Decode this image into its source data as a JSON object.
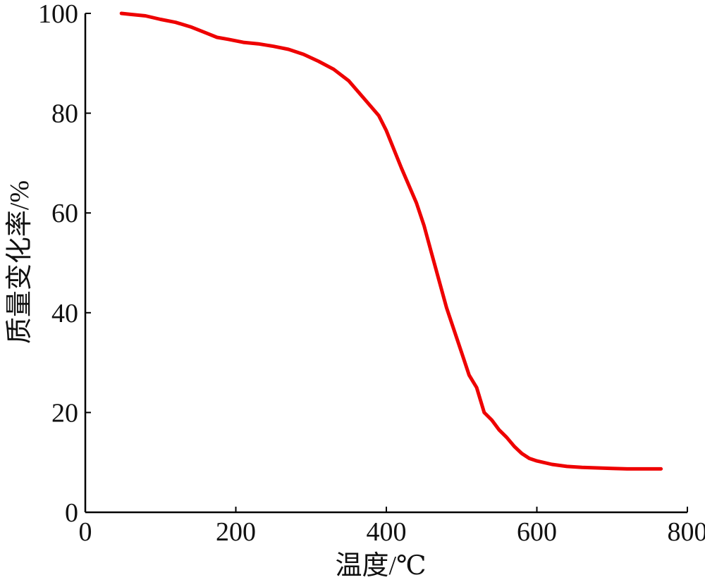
{
  "chart_data": {
    "type": "line",
    "title": "",
    "xlabel": "温度/℃",
    "ylabel": "质量变化率/%",
    "xlim": [
      0,
      800
    ],
    "ylim": [
      0,
      100
    ],
    "xticks": [
      0,
      200,
      400,
      600,
      800
    ],
    "yticks": [
      0,
      20,
      40,
      60,
      80,
      100
    ],
    "grid": false,
    "series": [
      {
        "color": "#ee0000",
        "x": [
          48,
          60,
          80,
          100,
          120,
          140,
          160,
          175,
          190,
          210,
          230,
          250,
          270,
          290,
          310,
          330,
          350,
          370,
          390,
          400,
          420,
          440,
          450,
          460,
          470,
          480,
          490,
          500,
          510,
          520,
          530,
          540,
          550,
          560,
          570,
          580,
          590,
          600,
          620,
          640,
          660,
          680,
          700,
          720,
          740,
          765
        ],
        "y": [
          100,
          99.8,
          99.5,
          98.8,
          98.2,
          97.3,
          96.1,
          95.2,
          94.8,
          94.2,
          93.9,
          93.4,
          92.8,
          91.8,
          90.4,
          88.8,
          86.5,
          83.0,
          79.5,
          76.5,
          69.0,
          62.0,
          57.5,
          52.0,
          46.5,
          41.0,
          36.5,
          32.0,
          27.5,
          25.0,
          20.0,
          18.5,
          16.5,
          15.0,
          13.2,
          11.8,
          10.8,
          10.3,
          9.6,
          9.2,
          9.0,
          8.9,
          8.8,
          8.7,
          8.7,
          8.7
        ]
      }
    ]
  }
}
